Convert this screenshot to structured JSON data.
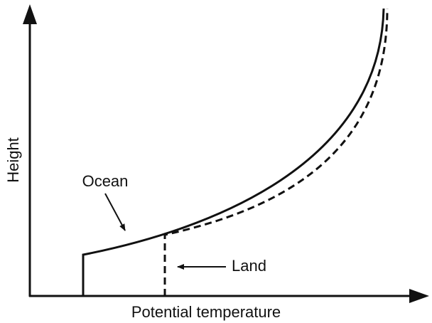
{
  "axes": {
    "x_label": "Potential temperature",
    "y_label": "Height"
  },
  "annotations": {
    "ocean": "Ocean",
    "land": "Land"
  }
}
